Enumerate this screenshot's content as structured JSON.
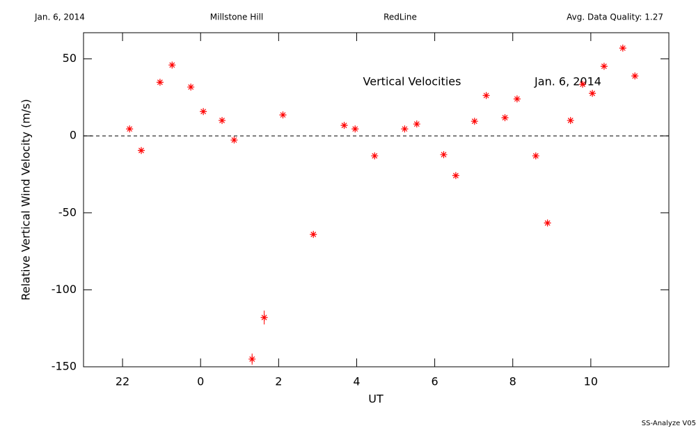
{
  "header": {
    "date": "Jan. 6, 2014",
    "site": "Millstone Hill",
    "line": "RedLine",
    "quality": "Avg. Data Quality: 1.27"
  },
  "chart_data": {
    "type": "scatter",
    "xlabel": "UT",
    "ylabel": "Relative Vertical Wind Velocity (m/s)",
    "annotations": [
      "Vertical Velocities",
      "Jan. 6, 2014"
    ],
    "x": [
      22.18,
      22.48,
      22.96,
      23.27,
      23.75,
      24.07,
      24.55,
      24.86,
      25.32,
      25.63,
      26.11,
      26.89,
      27.68,
      27.96,
      28.46,
      29.23,
      29.54,
      30.23,
      30.54,
      31.02,
      31.32,
      31.8,
      32.11,
      32.59,
      32.89,
      33.48,
      33.79,
      34.04,
      34.34,
      34.82,
      35.13
    ],
    "values": [
      4.5,
      -9.5,
      34.8,
      46,
      31.7,
      15.8,
      10,
      -2.7,
      -145,
      -118,
      13.6,
      -64,
      6.8,
      4.5,
      -13,
      4.5,
      7.7,
      -12.2,
      -25.8,
      9.5,
      26.2,
      11.8,
      24,
      -13,
      -56.6,
      10,
      33.5,
      27.6,
      45.2,
      57,
      38.9
    ],
    "errors": [
      1,
      1,
      1,
      1,
      1,
      1,
      1,
      1,
      3.6,
      4.5,
      1,
      1,
      1,
      1,
      1,
      1,
      1,
      1,
      1,
      1,
      1,
      1,
      1,
      1,
      1,
      1,
      1,
      1,
      1,
      1,
      1
    ],
    "color": "#ff0000",
    "xlim": [
      21,
      36
    ],
    "ylim": [
      -150,
      67
    ],
    "xticks": [
      22,
      {
        "value": 24,
        "label": "0"
      },
      {
        "value": 26,
        "label": "2"
      },
      {
        "value": 28,
        "label": "4"
      },
      {
        "value": 30,
        "label": "6"
      },
      {
        "value": 32,
        "label": "8"
      },
      {
        "value": 34,
        "label": "10"
      }
    ],
    "yticks": [
      -150,
      -100,
      -50,
      0,
      50
    ],
    "hline": 0
  },
  "footer": "SS-Analyze V05"
}
